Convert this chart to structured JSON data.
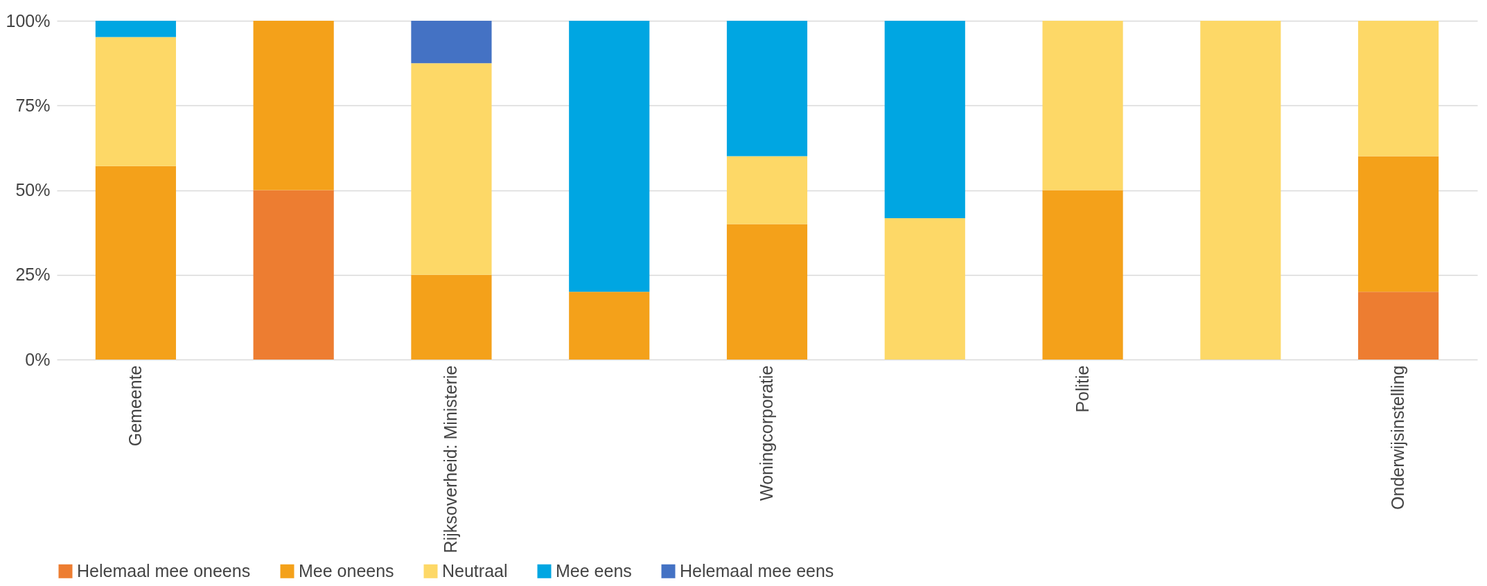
{
  "chart_data": {
    "type": "bar",
    "stacked": true,
    "categories": [
      "Gemeente",
      null,
      "Rijksoverheid: Ministerie",
      null,
      "Woningcorporatie",
      null,
      "Politie",
      null,
      "Onderwijsinstelling"
    ],
    "series": [
      {
        "name": "Helemaal mee oneens",
        "color": "#ed7d31",
        "values": [
          null,
          50,
          null,
          null,
          null,
          null,
          null,
          null,
          20
        ]
      },
      {
        "name": "Mee oneens",
        "color": "#f4a11a",
        "values": [
          57.1,
          50,
          25,
          20,
          40,
          null,
          50,
          null,
          40
        ]
      },
      {
        "name": "Neutraal",
        "color": "#fdd867",
        "values": [
          38.1,
          null,
          62.5,
          null,
          20,
          41.7,
          50,
          100,
          40
        ]
      },
      {
        "name": "Mee eens",
        "color": "#00a6e2",
        "values": [
          4.8,
          null,
          null,
          80,
          40,
          58.3,
          null,
          null,
          null
        ]
      },
      {
        "name": "Helemaal mee eens",
        "color": "#4472c4",
        "values": [
          null,
          null,
          12.5,
          null,
          null,
          null,
          null,
          null,
          null
        ]
      }
    ],
    "ylim": [
      0,
      100
    ],
    "yticks": [
      {
        "value": 0,
        "label": "0%"
      },
      {
        "value": 25,
        "label": "25%"
      },
      {
        "value": 50,
        "label": "50%"
      },
      {
        "value": 75,
        "label": "75%"
      },
      {
        "value": 100,
        "label": "100%"
      }
    ],
    "grid": "y",
    "legend": "bottom"
  }
}
